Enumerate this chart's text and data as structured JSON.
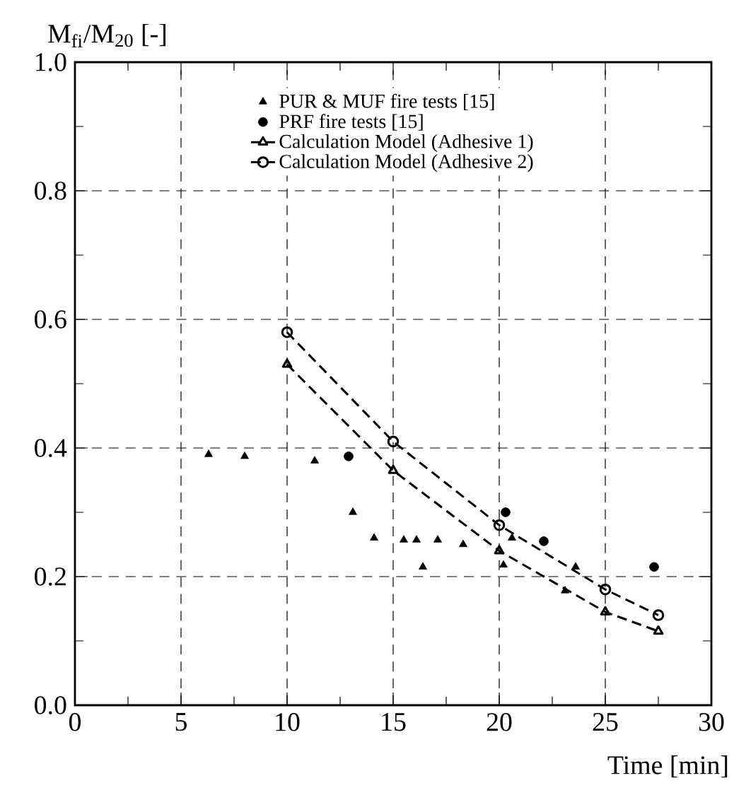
{
  "chart_data": {
    "type": "scatter",
    "xlabel": "Time [min]",
    "ylabel": "M$_{fi}$/M$_{20}$ [-]",
    "xlim": [
      0,
      30
    ],
    "ylim": [
      0,
      1
    ],
    "xticks": [
      0,
      5,
      10,
      15,
      20,
      25,
      30
    ],
    "yticks": [
      {
        "value": 0,
        "label": "0.0"
      },
      0.2,
      0.4,
      0.6,
      0.8,
      {
        "value": 1,
        "label": "1.0"
      }
    ],
    "grid": true,
    "legend": "top",
    "series": [
      {
        "name": "PUR & MUF fire tests [15]",
        "marker": "triangle",
        "color": "#000000",
        "x": [
          6.3,
          8.0,
          11.3,
          13.1,
          14.1,
          15.5,
          16.1,
          17.1,
          18.3,
          16.4,
          20.2,
          20.6,
          23.6,
          23.1
        ],
        "values": [
          0.39,
          0.387,
          0.38,
          0.3,
          0.26,
          0.257,
          0.257,
          0.257,
          0.25,
          0.215,
          0.218,
          0.26,
          0.215,
          0.178
        ]
      },
      {
        "name": "PRF fire tests [15]",
        "marker": "circle",
        "color": "#000000",
        "x": [
          12.9,
          20.3,
          22.1,
          27.3
        ],
        "values": [
          0.387,
          0.3,
          0.255,
          0.215
        ]
      },
      {
        "name": "Calculation Model (Adhesive 1)",
        "type": "line",
        "marker": "triangle",
        "line_style": "dashed",
        "color": "#000000",
        "x": [
          10,
          15,
          20,
          25,
          27.5
        ],
        "values": [
          0.53,
          0.365,
          0.24,
          0.145,
          0.115
        ]
      },
      {
        "name": "Calculation Model (Adhesive 2)",
        "type": "line",
        "marker": "circle",
        "line_style": "dashed",
        "color": "#000000",
        "x": [
          10,
          15,
          20,
          25,
          27.5
        ],
        "values": [
          0.58,
          0.41,
          0.28,
          0.18,
          0.14
        ]
      }
    ]
  }
}
